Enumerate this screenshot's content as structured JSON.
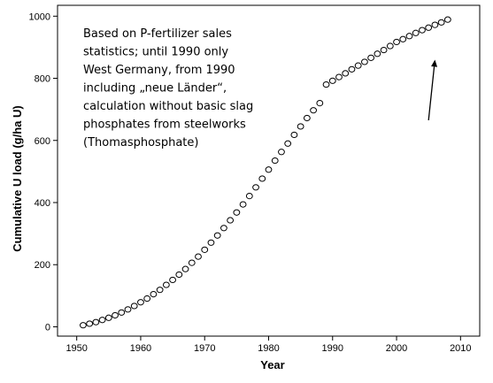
{
  "chart_data": {
    "type": "scatter",
    "xlabel": "Year",
    "ylabel": "Cumulative U load (g/ha U)",
    "xlim": [
      1947,
      2013
    ],
    "ylim": [
      -30,
      1035
    ],
    "x_ticks": [
      1950,
      1960,
      1970,
      1980,
      1990,
      2000,
      2010
    ],
    "y_ticks": [
      0,
      200,
      400,
      600,
      800,
      1000
    ],
    "grid": false,
    "annotation_lines": [
      "Based on P-fertilizer sales",
      "statistics; until 1990 only",
      "West Germany, from 1990",
      "including „neue Länder“,",
      "calculation without basic slag",
      "phosphates from steelworks",
      "(Thomasphosphate)"
    ],
    "arrow": {
      "from": [
        2005,
        665
      ],
      "to": [
        2006,
        860
      ]
    },
    "marker_color": "#000000",
    "series": [
      {
        "x": [
          1951,
          1952,
          1953,
          1954,
          1955,
          1956,
          1957,
          1958,
          1959,
          1960,
          1961,
          1962,
          1963,
          1964,
          1965,
          1966,
          1967,
          1968,
          1969,
          1970,
          1971,
          1972,
          1973,
          1974,
          1975,
          1976,
          1977,
          1978,
          1979,
          1980,
          1981,
          1982,
          1983,
          1984,
          1985,
          1986,
          1987,
          1988,
          1989,
          1990,
          1991,
          1992,
          1993,
          1994,
          1995,
          1996,
          1997,
          1998,
          1999,
          2000,
          2001,
          2002,
          2003,
          2004,
          2005,
          2006,
          2007,
          2008
        ],
        "y": [
          5,
          10,
          15,
          22,
          29,
          37,
          46,
          56,
          67,
          79,
          91,
          105,
          119,
          135,
          151,
          168,
          186,
          206,
          226,
          248,
          271,
          294,
          318,
          343,
          368,
          394,
          421,
          449,
          477,
          506,
          535,
          563,
          590,
          618,
          645,
          672,
          697,
          720,
          780,
          792,
          804,
          816,
          829,
          841,
          853,
          866,
          879,
          891,
          904,
          917,
          926,
          936,
          946,
          955,
          963,
          972,
          980,
          989
        ]
      }
    ]
  }
}
